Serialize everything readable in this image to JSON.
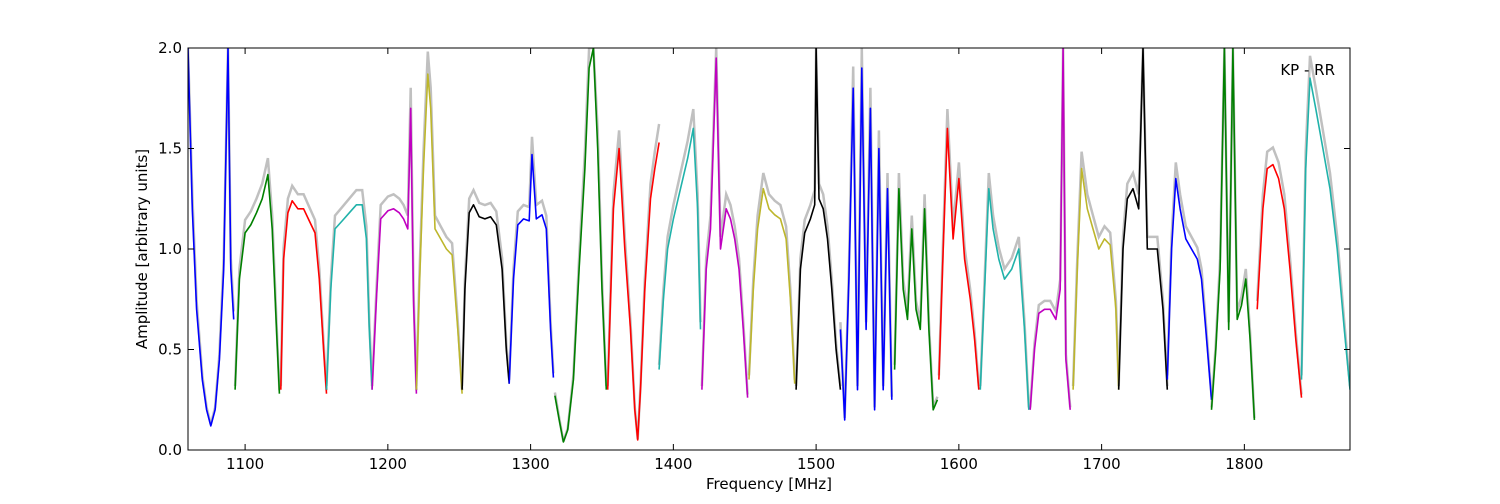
{
  "chart_data": {
    "type": "line",
    "title": "",
    "annotation": "KP - RR",
    "xlabel": "Frequency [MHz]",
    "ylabel": "Amplitude [arbitrary units]",
    "xlim": [
      1060,
      1874
    ],
    "ylim": [
      0.0,
      2.0
    ],
    "x_ticks": [
      1100,
      1200,
      1300,
      1400,
      1500,
      1600,
      1700,
      1800
    ],
    "y_ticks": [
      0.0,
      0.5,
      1.0,
      1.5,
      2.0
    ],
    "x_tick_labels": [
      "1100",
      "1200",
      "1300",
      "1400",
      "1500",
      "1600",
      "1700",
      "1800"
    ],
    "y_tick_labels": [
      "0.0",
      "0.5",
      "1.0",
      "1.5",
      "2.0"
    ],
    "grid": false,
    "legend": "none",
    "background_color": "#c0c0c0",
    "background_note_hidden": true,
    "series": [
      {
        "color": "#0000ff",
        "x": [
          1060,
          1063,
          1066,
          1070,
          1073,
          1076,
          1079,
          1082,
          1085,
          1088,
          1090,
          1092
        ],
        "y": [
          2.0,
          1.2,
          0.7,
          0.35,
          0.2,
          0.12,
          0.2,
          0.45,
          0.9,
          2.0,
          0.9,
          0.65
        ]
      },
      {
        "color": "#008000",
        "x": [
          1093,
          1096,
          1100,
          1104,
          1108,
          1112,
          1116,
          1119,
          1122,
          1124
        ],
        "y": [
          0.3,
          0.85,
          1.08,
          1.12,
          1.18,
          1.25,
          1.37,
          1.1,
          0.6,
          0.28
        ]
      },
      {
        "color": "#ff0000",
        "x": [
          1125,
          1127,
          1130,
          1133,
          1137,
          1141,
          1145,
          1149,
          1152,
          1155,
          1157
        ],
        "y": [
          0.3,
          0.95,
          1.18,
          1.24,
          1.2,
          1.2,
          1.14,
          1.08,
          0.85,
          0.5,
          0.28
        ]
      },
      {
        "color": "#20b2aa",
        "x": [
          1157,
          1160,
          1163,
          1168,
          1173,
          1178,
          1182,
          1185,
          1187,
          1189
        ],
        "y": [
          0.3,
          0.8,
          1.1,
          1.14,
          1.18,
          1.22,
          1.22,
          1.05,
          0.6,
          0.3
        ]
      },
      {
        "color": "#c000c0",
        "x": [
          1189,
          1192,
          1195,
          1200,
          1204,
          1208,
          1211,
          1214,
          1216,
          1218,
          1220
        ],
        "y": [
          0.3,
          0.75,
          1.15,
          1.19,
          1.2,
          1.18,
          1.15,
          1.1,
          1.7,
          0.75,
          0.28
        ]
      },
      {
        "color": "#bdb62b",
        "x": [
          1220,
          1222,
          1225,
          1228,
          1230,
          1233,
          1237,
          1241,
          1245,
          1249,
          1252
        ],
        "y": [
          0.3,
          0.8,
          1.4,
          1.87,
          1.7,
          1.1,
          1.05,
          1.0,
          0.97,
          0.6,
          0.28
        ]
      },
      {
        "color": "#000000",
        "x": [
          1252,
          1254,
          1257,
          1260,
          1264,
          1268,
          1272,
          1276,
          1280,
          1283,
          1285
        ],
        "y": [
          0.3,
          0.8,
          1.18,
          1.22,
          1.16,
          1.15,
          1.16,
          1.12,
          0.9,
          0.5,
          0.33
        ]
      },
      {
        "color": "#0000ff",
        "x": [
          1285,
          1288,
          1291,
          1295,
          1299,
          1301,
          1304,
          1308,
          1311,
          1314,
          1316
        ],
        "y": [
          0.33,
          0.85,
          1.12,
          1.15,
          1.14,
          1.47,
          1.15,
          1.17,
          1.1,
          0.6,
          0.36
        ]
      },
      {
        "color": "#008000",
        "x": [
          1317,
          1320,
          1323,
          1326,
          1330,
          1334,
          1338,
          1341,
          1344,
          1347,
          1350,
          1353
        ],
        "y": [
          0.27,
          0.15,
          0.04,
          0.1,
          0.35,
          0.9,
          1.4,
          1.9,
          2.0,
          1.5,
          0.8,
          0.3
        ]
      },
      {
        "color": "#ff0000",
        "x": [
          1354,
          1358,
          1362,
          1366,
          1370,
          1373,
          1375,
          1377,
          1380,
          1384,
          1387,
          1390
        ],
        "y": [
          0.3,
          1.2,
          1.5,
          1.0,
          0.6,
          0.2,
          0.05,
          0.3,
          0.8,
          1.25,
          1.4,
          1.53
        ]
      },
      {
        "color": "#20b2aa",
        "x": [
          1390,
          1393,
          1396,
          1400,
          1405,
          1410,
          1414,
          1417,
          1419
        ],
        "y": [
          0.4,
          0.75,
          1.0,
          1.15,
          1.3,
          1.45,
          1.6,
          1.2,
          0.6
        ]
      },
      {
        "color": "#c000c0",
        "x": [
          1420,
          1423,
          1426,
          1430,
          1433,
          1437,
          1440,
          1443,
          1446,
          1449,
          1452
        ],
        "y": [
          0.3,
          0.9,
          1.1,
          1.95,
          1.0,
          1.2,
          1.15,
          1.05,
          0.9,
          0.6,
          0.26
        ]
      },
      {
        "color": "#bdb62b",
        "x": [
          1453,
          1456,
          1459,
          1463,
          1467,
          1471,
          1475,
          1479,
          1482,
          1485
        ],
        "y": [
          0.35,
          0.8,
          1.1,
          1.3,
          1.2,
          1.17,
          1.15,
          1.05,
          0.75,
          0.33
        ]
      },
      {
        "color": "#000000",
        "x": [
          1486,
          1489,
          1492,
          1496,
          1499,
          1500,
          1502,
          1505,
          1508,
          1511,
          1514,
          1517
        ],
        "y": [
          0.3,
          0.9,
          1.08,
          1.15,
          1.22,
          2.0,
          1.25,
          1.2,
          1.05,
          0.8,
          0.5,
          0.3
        ]
      },
      {
        "color": "#0000ff",
        "x": [
          1517,
          1520,
          1523,
          1526,
          1529,
          1532,
          1535,
          1538,
          1541,
          1544,
          1547,
          1550,
          1553
        ],
        "y": [
          0.6,
          0.15,
          0.85,
          1.8,
          0.3,
          1.9,
          0.6,
          1.7,
          0.2,
          1.5,
          0.3,
          1.3,
          0.25
        ]
      },
      {
        "color": "#008000",
        "x": [
          1555,
          1558,
          1561,
          1564,
          1567,
          1570,
          1573,
          1576,
          1579,
          1582,
          1585
        ],
        "y": [
          0.4,
          1.3,
          0.8,
          0.65,
          1.1,
          0.7,
          0.6,
          1.2,
          0.6,
          0.2,
          0.25
        ]
      },
      {
        "color": "#ff0000",
        "x": [
          1586,
          1589,
          1592,
          1596,
          1600,
          1604,
          1608,
          1611,
          1614
        ],
        "y": [
          0.35,
          1.0,
          1.6,
          1.05,
          1.35,
          0.95,
          0.75,
          0.55,
          0.3
        ]
      },
      {
        "color": "#20b2aa",
        "x": [
          1615,
          1618,
          1621,
          1624,
          1628,
          1632,
          1637,
          1642,
          1646,
          1649
        ],
        "y": [
          0.3,
          0.8,
          1.3,
          1.1,
          0.95,
          0.85,
          0.9,
          1.0,
          0.6,
          0.2
        ]
      },
      {
        "color": "#c000c0",
        "x": [
          1650,
          1653,
          1656,
          1660,
          1664,
          1668,
          1671,
          1673,
          1675,
          1678
        ],
        "y": [
          0.2,
          0.5,
          0.68,
          0.7,
          0.7,
          0.65,
          0.8,
          2.0,
          0.45,
          0.2
        ]
      },
      {
        "color": "#bdb62b",
        "x": [
          1680,
          1683,
          1686,
          1690,
          1694,
          1698,
          1702,
          1706,
          1710,
          1712
        ],
        "y": [
          0.3,
          0.9,
          1.4,
          1.2,
          1.1,
          1.0,
          1.05,
          1.02,
          0.7,
          0.3
        ]
      },
      {
        "color": "#000000",
        "x": [
          1712,
          1715,
          1718,
          1722,
          1726,
          1729,
          1732,
          1735,
          1739,
          1743,
          1746
        ],
        "y": [
          0.3,
          1.0,
          1.25,
          1.3,
          1.2,
          2.0,
          1.0,
          1.0,
          1.0,
          0.7,
          0.3
        ]
      },
      {
        "color": "#0000ff",
        "x": [
          1746,
          1749,
          1752,
          1755,
          1759,
          1763,
          1767,
          1770,
          1773,
          1777
        ],
        "y": [
          0.35,
          1.0,
          1.35,
          1.2,
          1.05,
          1.0,
          0.95,
          0.85,
          0.6,
          0.25
        ]
      },
      {
        "color": "#008000",
        "x": [
          1777,
          1780,
          1783,
          1786,
          1789,
          1792,
          1795,
          1798,
          1801,
          1804,
          1807
        ],
        "y": [
          0.2,
          0.5,
          0.9,
          2.0,
          0.6,
          2.0,
          0.65,
          0.72,
          0.85,
          0.55,
          0.15
        ]
      },
      {
        "color": "#ff0000",
        "x": [
          1809,
          1813,
          1816,
          1820,
          1824,
          1828,
          1832,
          1836,
          1840
        ],
        "y": [
          0.7,
          1.2,
          1.4,
          1.42,
          1.35,
          1.2,
          0.9,
          0.55,
          0.26
        ]
      },
      {
        "color": "#20b2aa",
        "x": [
          1840,
          1843,
          1846,
          1850,
          1855,
          1860,
          1865,
          1870,
          1874
        ],
        "y": [
          0.35,
          1.4,
          1.85,
          1.7,
          1.5,
          1.3,
          1.0,
          0.6,
          0.3
        ]
      }
    ]
  }
}
